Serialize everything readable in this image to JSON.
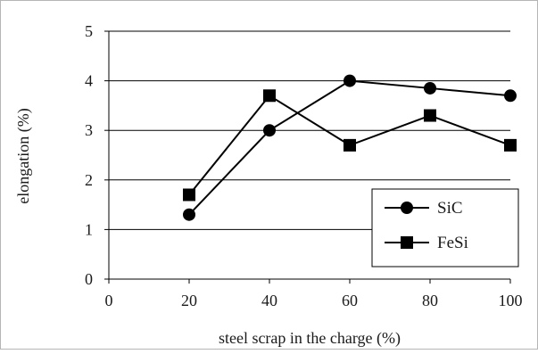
{
  "chart_data": {
    "type": "line",
    "xlabel": "steel scrap in the charge (%)",
    "ylabel": "elongation (%)",
    "xlim": [
      0,
      100
    ],
    "ylim": [
      0,
      5
    ],
    "x_ticks": [
      0,
      20,
      40,
      60,
      80,
      100
    ],
    "y_ticks": [
      0,
      1,
      2,
      3,
      4,
      5
    ],
    "grid": "horizontal gridlines",
    "legend_position": "bottom-right",
    "x": [
      20,
      40,
      60,
      80,
      100
    ],
    "series": [
      {
        "name": "SiC",
        "marker": "circle",
        "values": [
          1.3,
          3.0,
          4.0,
          3.85,
          3.7
        ]
      },
      {
        "name": "FeSi",
        "marker": "square",
        "values": [
          1.7,
          3.7,
          2.7,
          3.3,
          2.7
        ]
      }
    ]
  },
  "colors": {
    "series_line": "#000000",
    "axis": "#000000",
    "gridline": "#000000",
    "frame": "#b5b5b5"
  }
}
